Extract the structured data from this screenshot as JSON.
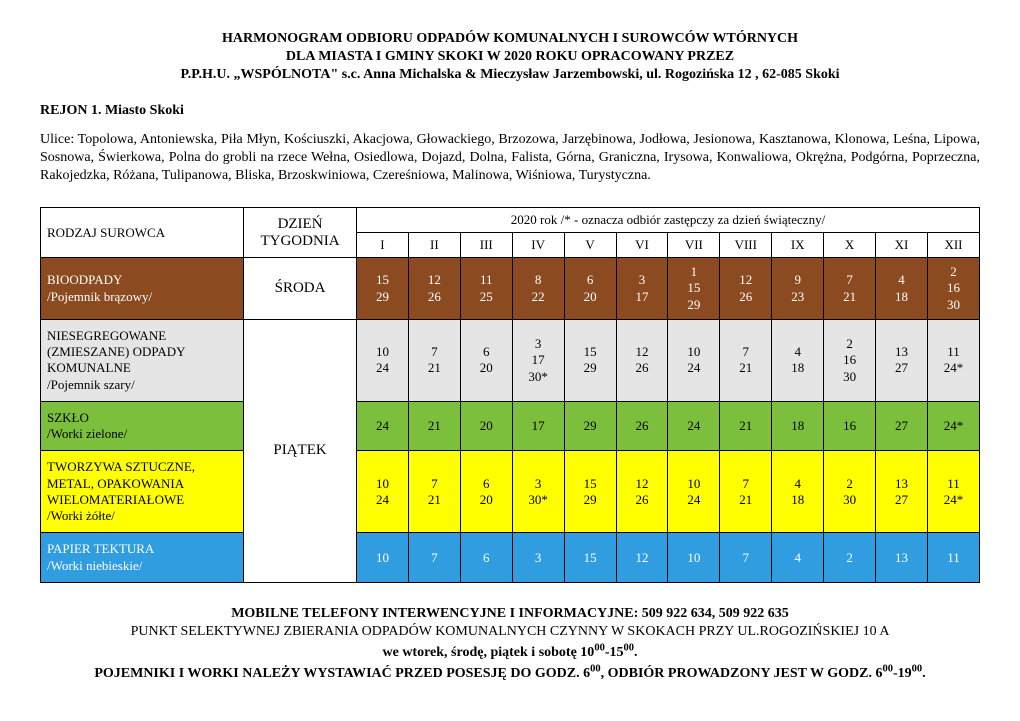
{
  "header": {
    "line1": "HARMONOGRAM ODBIORU ODPADÓW KOMUNALNYCH I SUROWCÓW WTÓRNYCH",
    "line2": "DLA MIASTA I GMINY SKOKI W 2020 ROKU OPRACOWANY PRZEZ",
    "line3": "P.P.H.U. „WSPÓLNOTA\" s.c. Anna Michalska & Mieczysław Jarzembowski, ul. Rogozińska 12 , 62-085 Skoki"
  },
  "region": "REJON 1.   Miasto Skoki",
  "streets": "Ulice: Topolowa, Antoniewska, Piła Młyn, Kościuszki, Akacjowa, Głowackiego, Brzozowa, Jarzębinowa, Jodłowa, Jesionowa, Kasztanowa, Klonowa, Leśna, Lipowa, Sosnowa, Świerkowa, Polna do grobli na rzece Wełna, Osiedlowa, Dojazd, Dolna, Falista, Górna, Graniczna, Irysowa, Konwaliowa, Okrężna, Podgórna, Poprzeczna, Rakojedzka, Różana, Tulipanowa, Bliska, Brzoskwiniowa, Czereśniowa, Malinowa, Wiśniowa, Turystyczna.",
  "table": {
    "rodzaj_label": "RODZAJ SUROWCA",
    "dzien_label": "DZIEŃ TYGODNIA",
    "year_header": "2020  rok  /* -  oznacza odbiór zastępczy za dzień świąteczny/",
    "months": [
      "I",
      "II",
      "III",
      "IV",
      "V",
      "VI",
      "VII",
      "VIII",
      "IX",
      "X",
      "XI",
      "XII"
    ],
    "rows": [
      {
        "label": "BIOODPADY\n/Pojemnik brązowy/",
        "day": "ŚRODA",
        "color": "brown",
        "values": [
          "15\n29",
          "12\n26",
          "11\n25",
          "8\n22",
          "6\n20",
          "3\n17",
          "1\n15\n29",
          "12\n26",
          "9\n23",
          "7\n21",
          "4\n18",
          "2\n16\n30"
        ]
      },
      {
        "label": "NIESEGREGOWANE (ZMIESZANE) ODPADY KOMUNALNE\n/Pojemnik szary/",
        "day": "PIĄTEK",
        "color": "grey",
        "values": [
          "10\n24",
          "7\n21",
          "6\n20",
          "3\n17\n30*",
          "15\n29",
          "12\n26",
          "10\n24",
          "7\n21",
          "4\n18",
          "2\n16\n30",
          "13\n27",
          "11\n24*"
        ]
      },
      {
        "label": "SZKŁO\n/Worki zielone/",
        "color": "green",
        "values": [
          "24",
          "21",
          "20",
          "17",
          "29",
          "26",
          "24",
          "21",
          "18",
          "16",
          "27",
          "24*"
        ]
      },
      {
        "label": "TWORZYWA SZTUCZNE, METAL, OPAKOWANIA WIELOMATERIAŁOWE\n/Worki żółte/",
        "color": "yellow",
        "values": [
          "10\n24",
          "7\n21",
          "6\n20",
          "3\n30*",
          "15\n29",
          "12\n26",
          "10\n24",
          "7\n21",
          "4\n18",
          "2\n30",
          "13\n27",
          "11\n24*"
        ]
      },
      {
        "label": "PAPIER TEKTURA\n/Worki niebieskie/",
        "color": "blue",
        "values": [
          "10",
          "7",
          "6",
          "3",
          "15",
          "12",
          "10",
          "7",
          "4",
          "2",
          "13",
          "11"
        ]
      }
    ]
  },
  "footer": {
    "line1_bold": "MOBILNE TELEFONY INTERWENCYJNE I INFORMACYJNE: 509 922 634,  509 922 635",
    "line2": "PUNKT SELEKTYWNEJ ZBIERANIA  ODPADÓW  KOMUNALNYCH CZYNNY W SKOKACH PRZY UL.ROGOZIŃSKIEJ 10 A",
    "line3_prefix": "we wtorek, środę, piątek i sobotę 10",
    "line3_sup1": "00",
    "line3_mid": "-15",
    "line3_sup2": "00",
    "line3_suffix": ".",
    "line4_prefix": "POJEMNIKI I WORKI NALEŻY WYSTAWIAĆ PRZED POSESJĘ DO GODZ. 6",
    "line4_sup1": "00",
    "line4_mid": ", ODBIÓR PROWADZONY JEST W GODZ. 6",
    "line4_sup2": "00",
    "line4_mid2": "-19",
    "line4_sup3": "00",
    "line4_suffix": "."
  },
  "colors": {
    "brown": "#8b4a1f",
    "grey": "#e5e5e5",
    "green": "#7bbf3c",
    "yellow": "#ffff00",
    "blue": "#2f9de0"
  }
}
